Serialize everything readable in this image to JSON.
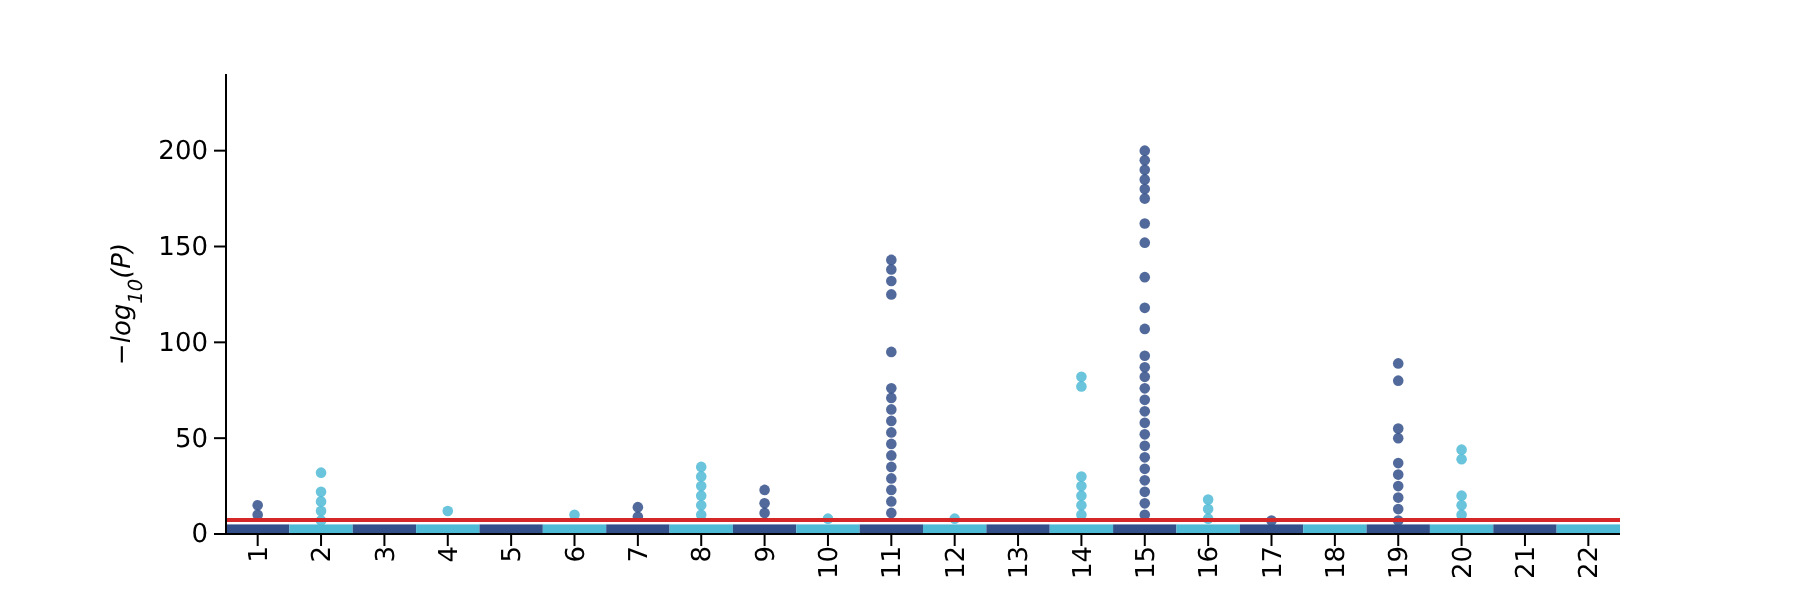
{
  "chart_data": {
    "type": "scatter",
    "ylabel": "−log$_{10}$(P)",
    "ylim": [
      0,
      240
    ],
    "yticks": [
      0,
      50,
      100,
      150,
      200
    ],
    "categories": [
      "1",
      "2",
      "3",
      "4",
      "5",
      "6",
      "7",
      "8",
      "9",
      "10",
      "11",
      "12",
      "13",
      "14",
      "15",
      "16",
      "17",
      "18",
      "19",
      "20",
      "21",
      "22"
    ],
    "marker": "circle",
    "grid": false,
    "ref_lines": [
      {
        "axis": "y",
        "value": 7.3,
        "color": "#d62728"
      }
    ],
    "series": [
      {
        "type": "bar",
        "colors": [
          "#34508a",
          "#4fbad6",
          "#34508a",
          "#4fbad6",
          "#34508a",
          "#4fbad6",
          "#34508a",
          "#4fbad6",
          "#34508a",
          "#4fbad6",
          "#34508a",
          "#4fbad6",
          "#34508a",
          "#4fbad6",
          "#34508a",
          "#4fbad6",
          "#34508a",
          "#4fbad6",
          "#34508a",
          "#4fbad6",
          "#34508a",
          "#4fbad6"
        ],
        "values": [
          5,
          5,
          5,
          5,
          5,
          5,
          5,
          5,
          5,
          5,
          5,
          5,
          5,
          5,
          5,
          5,
          5,
          5,
          5,
          5,
          5,
          5
        ]
      },
      {
        "color": "#34508a",
        "x": [
          "1",
          "1",
          "7",
          "7",
          "9",
          "9",
          "9",
          "11",
          "11",
          "11",
          "11",
          "11",
          "11",
          "11",
          "11",
          "11",
          "11",
          "11",
          "11",
          "11",
          "11",
          "11",
          "11",
          "11",
          "15",
          "15",
          "15",
          "15",
          "15",
          "15",
          "15",
          "15",
          "15",
          "15",
          "15",
          "15",
          "15",
          "15",
          "15",
          "15",
          "15",
          "15",
          "15",
          "15",
          "15",
          "15",
          "15",
          "15",
          "15",
          "15",
          "17",
          "19",
          "19",
          "19",
          "19",
          "19",
          "19",
          "19",
          "19",
          "19",
          "19"
        ],
        "values": [
          15,
          10,
          14,
          9,
          23,
          16,
          11,
          143,
          138,
          132,
          125,
          95,
          76,
          71,
          65,
          59,
          53,
          47,
          41,
          35,
          29,
          23,
          17,
          11,
          200,
          195,
          190,
          185,
          180,
          175,
          162,
          152,
          134,
          118,
          107,
          93,
          87,
          82,
          76,
          70,
          64,
          58,
          52,
          46,
          40,
          34,
          28,
          22,
          16,
          10,
          7,
          89,
          80,
          55,
          50,
          37,
          31,
          25,
          19,
          13,
          7
        ]
      },
      {
        "color": "#4fbad6",
        "x": [
          "2",
          "2",
          "2",
          "2",
          "2",
          "4",
          "6",
          "8",
          "8",
          "8",
          "8",
          "8",
          "8",
          "10",
          "12",
          "14",
          "14",
          "14",
          "14",
          "14",
          "14",
          "14",
          "16",
          "16",
          "16",
          "20",
          "20",
          "20",
          "20",
          "20"
        ],
        "values": [
          32,
          22,
          17,
          12,
          7,
          12,
          10,
          35,
          30,
          25,
          20,
          15,
          10,
          8,
          8,
          82,
          77,
          30,
          25,
          20,
          15,
          10,
          18,
          13,
          8,
          44,
          39,
          20,
          15,
          10
        ]
      }
    ]
  }
}
